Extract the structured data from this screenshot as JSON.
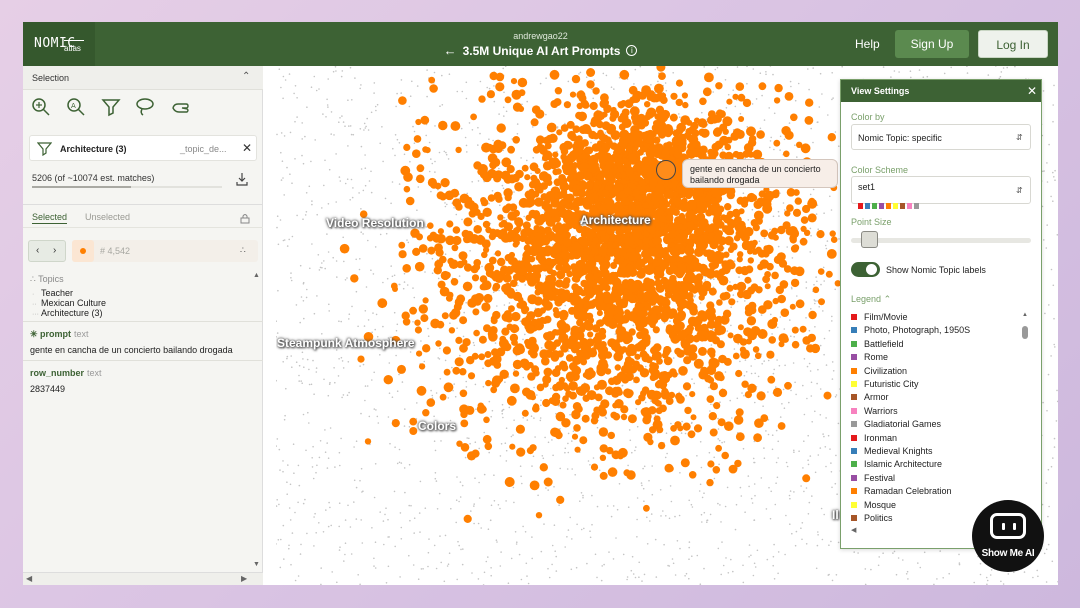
{
  "header": {
    "logo_main": "NOMIC",
    "logo_sub": "atlas",
    "owner": "andrewgao22",
    "title": "3.5M Unique AI Art Prompts",
    "back_icon": "arrow-left-icon",
    "info_icon": "info-icon",
    "help": "Help",
    "signup": "Sign Up",
    "login": "Log In",
    "brand_color": "#3d6234"
  },
  "sidebar": {
    "section_title": "Selection",
    "tools": [
      "lasso-zoom-icon",
      "search-text-icon",
      "filter-icon",
      "lasso-icon",
      "hand-pointer-icon"
    ],
    "filter": {
      "name": "Architecture (3)",
      "field": "_topic_de..."
    },
    "matches": "5206 (of ~10074 est. matches)",
    "match_fraction": 0.52,
    "tabs": {
      "selected": "Selected",
      "unselected": "Unselected"
    },
    "point": {
      "id": "# 4,542"
    },
    "topics": {
      "header": "Topics",
      "items": [
        "Teacher",
        "Mexican Culture",
        "Architecture (3)"
      ]
    },
    "fields": [
      {
        "key": "prompt",
        "type": "text",
        "value": "gente en cancha de un concierto bailando drogada"
      },
      {
        "key": "row_number",
        "type": "text",
        "value": "2837449"
      }
    ]
  },
  "map": {
    "point_color": "#ff7f00",
    "labels": [
      "Video Resolution",
      "Architecture",
      "Steampunk Atmosphere",
      "Colors",
      "Il"
    ],
    "tooltip": "gente en cancha de un concierto bailando drogada"
  },
  "view_settings": {
    "title": "View Settings",
    "color_by_label": "Color by",
    "color_by_value": "Nomic Topic: specific",
    "scheme_label": "Color Scheme",
    "scheme_value": "set1",
    "scheme_colors": [
      "#e41a1c",
      "#377eb8",
      "#4daf4a",
      "#984ea3",
      "#ff7f00",
      "#ffff33",
      "#a65628",
      "#f781bf",
      "#999999"
    ],
    "point_size_label": "Point Size",
    "point_size_fraction": 0.08,
    "toggle_label": "Show Nomic Topic labels",
    "toggle_on": true,
    "legend_label": "Legend",
    "legend": [
      {
        "name": "Film/Movie",
        "color": "#e41a1c"
      },
      {
        "name": "Photo, Photograph, 1950S",
        "color": "#377eb8"
      },
      {
        "name": "Battlefield",
        "color": "#4daf4a"
      },
      {
        "name": "Rome",
        "color": "#984ea3"
      },
      {
        "name": "Civilization",
        "color": "#ff7f00"
      },
      {
        "name": "Futuristic City",
        "color": "#ffff33"
      },
      {
        "name": "Armor",
        "color": "#a65628"
      },
      {
        "name": "Warriors",
        "color": "#f781bf"
      },
      {
        "name": "Gladiatorial Games",
        "color": "#999999"
      },
      {
        "name": "Ironman",
        "color": "#e41a1c"
      },
      {
        "name": "Medieval Knights",
        "color": "#377eb8"
      },
      {
        "name": "Islamic Architecture",
        "color": "#4daf4a"
      },
      {
        "name": "Festival",
        "color": "#984ea3"
      },
      {
        "name": "Ramadan Celebration",
        "color": "#ff7f00"
      },
      {
        "name": "Mosque",
        "color": "#ffff33"
      },
      {
        "name": "Politics",
        "color": "#a65628"
      }
    ]
  },
  "watermark": {
    "text": "Show Me AI"
  }
}
